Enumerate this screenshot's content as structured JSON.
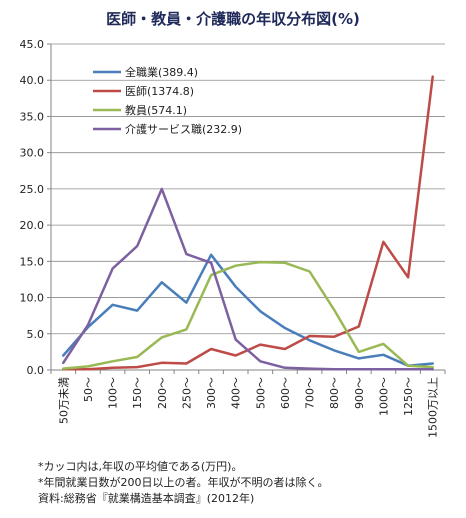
{
  "chart_data": {
    "type": "line",
    "title": "医師・教員・介護職の年収分布図(%)",
    "xlabel": "",
    "ylabel": "",
    "ylim": [
      0,
      45
    ],
    "yticks": [
      "0.0",
      "5.0",
      "10.0",
      "15.0",
      "20.0",
      "25.0",
      "30.0",
      "35.0",
      "40.0",
      "45.0"
    ],
    "categories": [
      "50万未満",
      "50〜",
      "100〜",
      "150〜",
      "200〜",
      "250〜",
      "300〜",
      "400〜",
      "500〜",
      "600〜",
      "700〜",
      "800〜",
      "900〜",
      "1000〜",
      "1250〜",
      "1500万以上"
    ],
    "grid": true,
    "legend_position": "top-left",
    "series": [
      {
        "name": "全職業",
        "legend_label": "全職業(389.4)",
        "color": "#4a7ebb",
        "values": [
          2.0,
          5.9,
          9.0,
          8.2,
          12.1,
          9.3,
          15.9,
          11.5,
          8.1,
          5.8,
          4.1,
          2.7,
          1.6,
          2.1,
          0.6,
          0.9
        ]
      },
      {
        "name": "医師",
        "legend_label": "医師(1374.8)",
        "color": "#be4b48",
        "values": [
          0.1,
          0.1,
          0.3,
          0.4,
          1.0,
          0.9,
          2.9,
          2.0,
          3.5,
          2.9,
          4.7,
          4.6,
          6.0,
          17.7,
          12.8,
          40.5
        ]
      },
      {
        "name": "教員",
        "legend_label": "教員(574.1)",
        "color": "#98b954",
        "values": [
          0.2,
          0.5,
          1.2,
          1.8,
          4.5,
          5.6,
          13.1,
          14.4,
          14.9,
          14.8,
          13.6,
          8.3,
          2.5,
          3.6,
          0.6,
          0.4
        ]
      },
      {
        "name": "介護サービス職",
        "legend_label": "介護サービス職(232.9)",
        "color": "#7d60a0",
        "values": [
          1.0,
          6.2,
          14.0,
          17.1,
          25.0,
          16.0,
          14.8,
          4.2,
          1.2,
          0.3,
          0.2,
          0.1,
          0.1,
          0.1,
          0.1,
          0.1
        ]
      }
    ]
  },
  "notes": {
    "note1": "*カッコ内は,年収の平均値である(万円)。",
    "note2": "*年間就業日数が200日以上の者。年収が不明の者は除く。",
    "note3": "資料:総務省『就業構造基本調査』(2012年)"
  }
}
